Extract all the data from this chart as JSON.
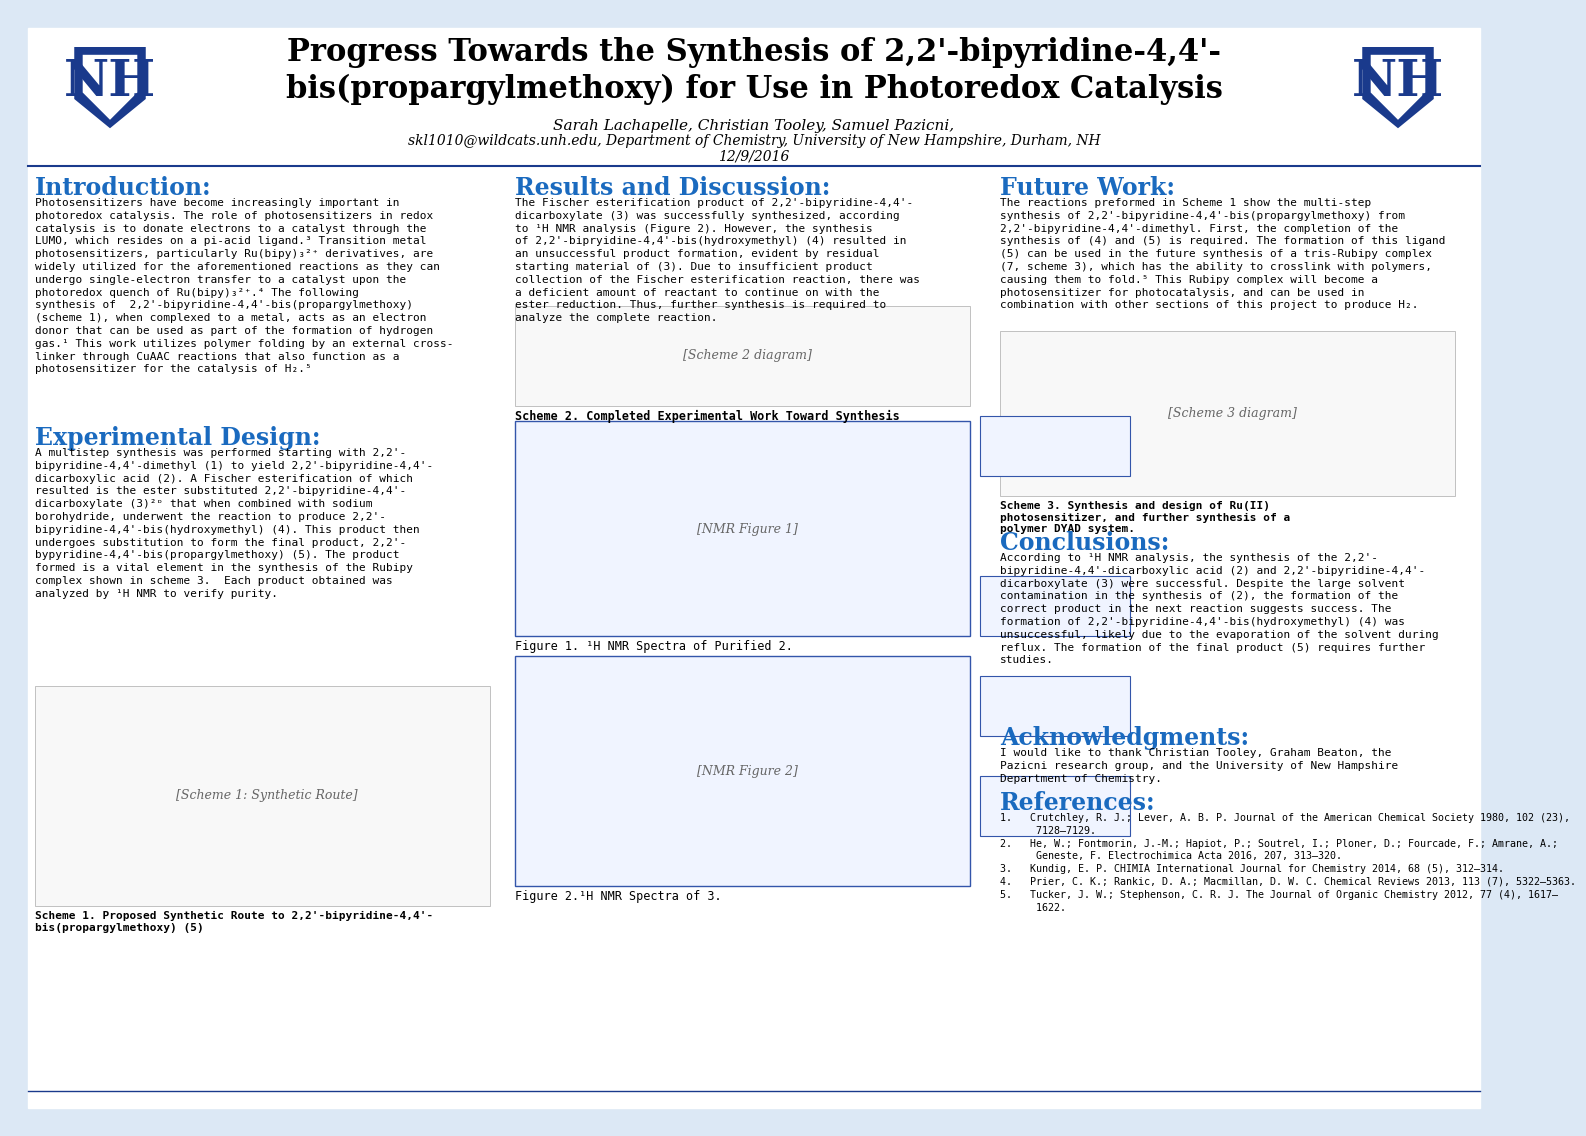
{
  "title_line1": "Progress Towards the Synthesis of 2,2'-bipyridine-4,4'-",
  "title_line2": "bis(propargylmethoxy) for Use in Photoredox Catalysis",
  "authors": "Sarah Lachapelle, Christian Tooley, Samuel Pazicni,",
  "affiliation": "skl1010@wildcats.unh.edu, Department of Chemistry, University of New Hampshire, Durham, NH",
  "date": "12/9/2016",
  "bg_color": "#dce8f5",
  "header_bg": "#dce8f5",
  "panel_bg": "#ffffff",
  "nh_blue": "#1a3a8c",
  "section_color": "#1a6abf",
  "title_color": "#000000",
  "intro_heading": "Introduction:",
  "intro_text": "Photosensitizers have become increasingly important in\nphotoredox catalysis. The role of photosensitizers in redox\ncatalysis is to donate electrons to a catalyst through the\nLUMO, which resides on a pi-acid ligand.³ Transition metal\nphotosensitizers, particularly Ru(bipy)₃²⁺ derivatives, are\nwidely utilized for the aforementioned reactions as they can\nundergo single-electron transfer to a catalyst upon the\nphotoredox quench of Ru(bipy)₃²⁺.⁴ The following\nsynthesis of  2,2'-bipyridine-4,4'-bis(propargylmethoxy)\n(scheme 1), when complexed to a metal, acts as an electron\ndonor that can be used as part of the formation of hydrogen\ngas.¹ This work utilizes polymer folding by an external cross-\nlinker through CuAAC reactions that also function as a\nphotosensitizer for the catalysis of H₂.⁵",
  "exp_heading": "Experimental Design:",
  "exp_text": "A multistep synthesis was performed starting with 2,2'-\nbipyridine-4,4'-dimethyl (1) to yield 2,2'-bipyridine-4,4'-\ndicarboxylic acid (2). A Fischer esterification of which\nresulted is the ester substituted 2,2'-bipyridine-4,4'-\ndicarboxylate (3)²ᶛ that when combined with sodium\nborohydride, underwent the reaction to produce 2,2'-\nbipyridine-4,4'-bis(hydroxymethyl) (4). This product then\nundergoes substitution to form the final product, 2,2'-\nbypyridine-4,4'-bis(propargylmethoxy) (5). The product\nformed is a vital element in the synthesis of the Rubipy\ncomplex shown in scheme 3.  Each product obtained was\nanalyzed by ¹H NMR to verify purity.",
  "scheme1_caption": "Scheme 1. Proposed Synthetic Route to 2,2'-bipyridine-4,4'-\nbis(propargylmethoxy) (5)",
  "results_heading": "Results and Discussion:",
  "results_text": "The Fischer esterification product of 2,2'-bipyridine-4,4'-\ndicarboxylate (3) was successfully synthesized, according\nto ¹H NMR analysis (Figure 2). However, the synthesis\nof 2,2'-bipryidine-4,4'-bis(hydroxymethyl) (4) resulted in\nan unsuccessful product formation, evident by residual\nstarting material of (3). Due to insufficient product\ncollection of the Fischer esterification reaction, there was\na deficient amount of reactant to continue on with the\nester reduction. Thus, further synthesis is required to\nanalyze the complete reaction.",
  "scheme2_caption": "Scheme 2. Completed Experimental Work Toward Synthesis",
  "fig1_caption": "Figure 1. ¹H NMR Spectra of Purified 2.",
  "fig2_caption": "Figure 2.¹H NMR Spectra of 3.",
  "future_heading": "Future Work:",
  "future_text": "The reactions preformed in Scheme 1 show the multi-step\nsynthesis of 2,2'-bipyridine-4,4'-bis(propargylmethoxy) from\n2,2'-bipyridine-4,4'-dimethyl. First, the completion of the\nsynthesis of (4) and (5) is required. The formation of this ligand\n(5) can be used in the future synthesis of a tris-Rubipy complex\n(7, scheme 3), which has the ability to crosslink with polymers,\ncausing them to fold.⁵ This Rubipy complex will become a\nphotosensitizer for photocatalysis, and can be used in\ncombination with other sections of this project to produce H₂.",
  "scheme3_caption": "Scheme 3. Synthesis and design of Ru(II)\nphotosensitizer, and further synthesis of a\npolymer DYAD system.",
  "conclusions_heading": "Conclusions:",
  "conclusions_text": "According to ¹H NMR analysis, the synthesis of the 2,2'-\nbipyridine-4,4'-dicarboxylic acid (2) and 2,2'-bipyridine-4,4'-\ndicarboxylate (3) were successful. Despite the large solvent\ncontamination in the synthesis of (2), the formation of the\ncorrect product in the next reaction suggests success. The\nformation of 2,2'-bipyridine-4,4'-bis(hydroxymethyl) (4) was\nunsuccessful, likely due to the evaporation of the solvent during\nreflux. The formation of the final product (5) requires further\nstudies.",
  "ack_heading": "Acknowledgments:",
  "ack_text": "I would like to thank Christian Tooley, Graham Beaton, the\nPazicni research group, and the University of New Hampshire\nDepartment of Chemistry.",
  "ref_heading": "References:",
  "ref_text": "1.   Crutchley, R. J.; Lever, A. B. P. Journal of the American Chemical Society 1980, 102 (23),\n      7128–7129.\n2.   He, W.; Fontmorin, J.-M.; Hapiot, P.; Soutrel, I.; Ploner, D.; Fourcade, F.; Amrane, A.;\n      Geneste, F. Electrochimica Acta 2016, 207, 313–320.\n3.   Kundig, E. P. CHIMIA International Journal for Chemistry 2014, 68 (5), 312–314.\n4.   Prier, C. K.; Rankic, D. A.; Macmillan, D. W. C. Chemical Reviews 2013, 113 (7), 5322–5363.\n5.   Tucker, J. W.; Stephenson, C. R. J. The Journal of Organic Chemistry 2012, 77 (4), 1617–\n      1622."
}
